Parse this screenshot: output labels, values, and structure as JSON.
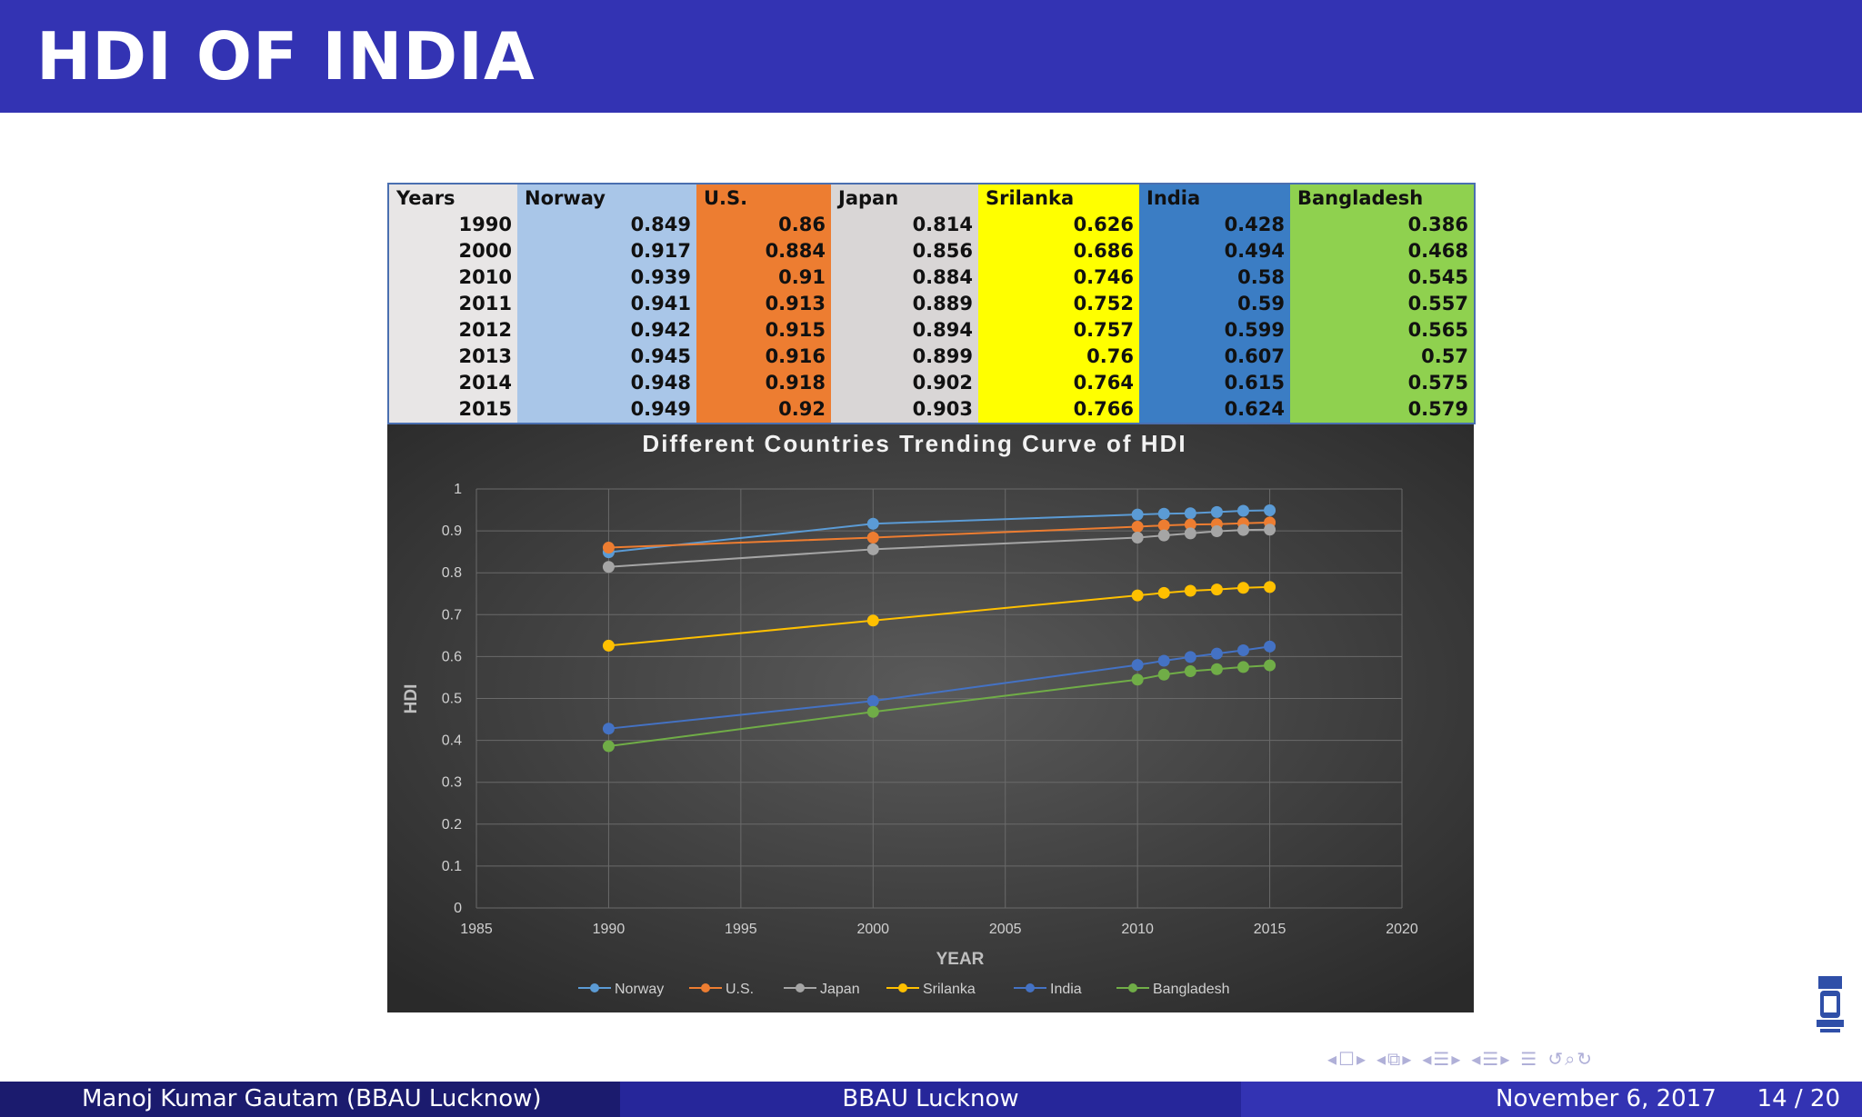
{
  "slide": {
    "title": "HDI OF INDIA"
  },
  "table": {
    "headers": [
      "Years",
      "Norway",
      "U.S.",
      "Japan",
      "Srilanka",
      "India",
      "Bangladesh"
    ],
    "rows": [
      [
        "1990",
        "0.849",
        "0.86",
        "0.814",
        "0.626",
        "0.428",
        "0.386"
      ],
      [
        "2000",
        "0.917",
        "0.884",
        "0.856",
        "0.686",
        "0.494",
        "0.468"
      ],
      [
        "2010",
        "0.939",
        "0.91",
        "0.884",
        "0.746",
        "0.58",
        "0.545"
      ],
      [
        "2011",
        "0.941",
        "0.913",
        "0.889",
        "0.752",
        "0.59",
        "0.557"
      ],
      [
        "2012",
        "0.942",
        "0.915",
        "0.894",
        "0.757",
        "0.599",
        "0.565"
      ],
      [
        "2013",
        "0.945",
        "0.916",
        "0.899",
        "0.76",
        "0.607",
        "0.57"
      ],
      [
        "2014",
        "0.948",
        "0.918",
        "0.902",
        "0.764",
        "0.615",
        "0.575"
      ],
      [
        "2015",
        "0.949",
        "0.92",
        "0.903",
        "0.766",
        "0.624",
        "0.579"
      ]
    ]
  },
  "chart_data": {
    "type": "line",
    "title": "Different Countries Trending Curve of HDI",
    "xlabel": "YEAR",
    "ylabel": "HDI",
    "xlim": [
      1985,
      2020
    ],
    "ylim": [
      0,
      1
    ],
    "xticks": [
      "1985",
      "1990",
      "1995",
      "2000",
      "2005",
      "2010",
      "2015",
      "2020"
    ],
    "yticks": [
      "0",
      "0.1",
      "0.2",
      "0.3",
      "0.4",
      "0.5",
      "0.6",
      "0.7",
      "0.8",
      "0.9",
      "1"
    ],
    "grid": true,
    "legend_position": "bottom",
    "x": [
      1990,
      2000,
      2010,
      2011,
      2012,
      2013,
      2014,
      2015
    ],
    "series": [
      {
        "name": "Norway",
        "color": "#5b9bd5",
        "values": [
          0.849,
          0.917,
          0.939,
          0.941,
          0.942,
          0.945,
          0.948,
          0.949
        ]
      },
      {
        "name": "U.S.",
        "color": "#ed7d31",
        "values": [
          0.86,
          0.884,
          0.91,
          0.913,
          0.915,
          0.916,
          0.918,
          0.92
        ]
      },
      {
        "name": "Japan",
        "color": "#a5a5a5",
        "values": [
          0.814,
          0.856,
          0.884,
          0.889,
          0.894,
          0.899,
          0.902,
          0.903
        ]
      },
      {
        "name": "Srilanka",
        "color": "#ffc000",
        "values": [
          0.626,
          0.686,
          0.746,
          0.752,
          0.757,
          0.76,
          0.764,
          0.766
        ]
      },
      {
        "name": "India",
        "color": "#4472c4",
        "values": [
          0.428,
          0.494,
          0.58,
          0.59,
          0.599,
          0.607,
          0.615,
          0.624
        ]
      },
      {
        "name": "Bangladesh",
        "color": "#70ad47",
        "values": [
          0.386,
          0.468,
          0.545,
          0.557,
          0.565,
          0.57,
          0.575,
          0.579
        ]
      }
    ]
  },
  "footer": {
    "author": "Manoj Kumar Gautam  (BBAU Lucknow)",
    "institute": "BBAU Lucknow",
    "date": "November 6, 2017",
    "page": "14 / 20"
  },
  "nav": {
    "icons": [
      "nav-frame-prev-icon",
      "nav-frame-icon",
      "nav-frame-next-icon",
      "nav-subsection-icon",
      "nav-section-icon",
      "nav-outline-icon",
      "nav-search-icon"
    ]
  }
}
